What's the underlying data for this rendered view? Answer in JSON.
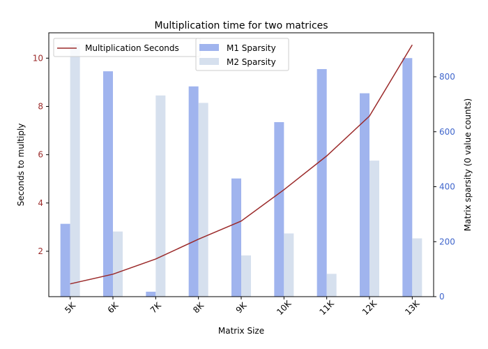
{
  "chart_data": {
    "type": "bar",
    "title": "Multiplication time for two matrices",
    "xlabel": "Matrix Size",
    "ylabel_left": "Seconds to multiply",
    "ylabel_right": "Matrix sparsity (0 value counts)",
    "categories": [
      "5K",
      "6K",
      "7K",
      "8K",
      "9K",
      "10K",
      "11K",
      "12K",
      "13K"
    ],
    "line_series": {
      "name": "Multiplication Seconds",
      "color": "#9b2a2a",
      "axis": "left",
      "values": [
        0.65,
        1.05,
        1.68,
        2.5,
        3.25,
        4.55,
        5.95,
        7.6,
        10.55
      ]
    },
    "bar_series": [
      {
        "name": "M1 Sparsity",
        "color": "#a0b4ee",
        "axis": "right",
        "values": [
          265,
          820,
          18,
          765,
          430,
          635,
          828,
          740,
          868
        ]
      },
      {
        "name": "M2 Sparsity",
        "color": "#d6e0ee",
        "axis": "right",
        "values": [
          920,
          237,
          732,
          705,
          150,
          230,
          83,
          495,
          212
        ]
      }
    ],
    "ylim_left": [
      0.12,
      11.05
    ],
    "ylim_right": [
      0,
      960
    ],
    "yticks_left": [
      "2",
      "4",
      "6",
      "8",
      "10"
    ],
    "yticks_right": [
      "0",
      "200",
      "400",
      "600",
      "800"
    ],
    "left_tick_color": "#9b2a2a",
    "right_tick_color": "#4066cc",
    "legend_left_location": "upper-left",
    "legend_right_location": "upper-center",
    "grid": false
  }
}
